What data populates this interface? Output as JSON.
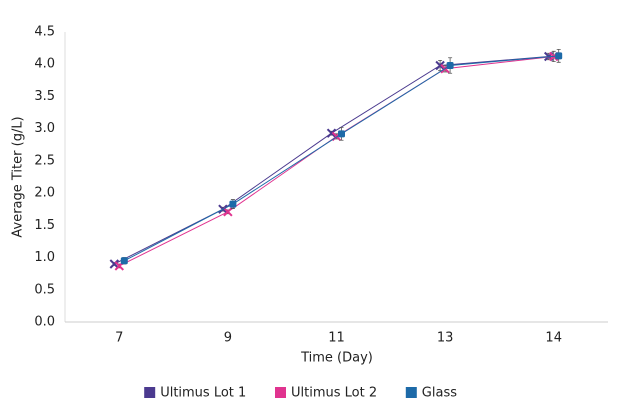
{
  "chart_data": {
    "type": "line",
    "x_label": "Time (Day)",
    "y_label": "Average Titer (g/L)",
    "categories": [
      "7",
      "9",
      "11",
      "13",
      "14"
    ],
    "series": [
      {
        "name": "Ultimus Lot 1",
        "color": "#4b3a8f",
        "marker": "x",
        "values": [
          0.9,
          1.75,
          2.93,
          3.98,
          4.12
        ],
        "errors": [
          0.02,
          0.03,
          0.03,
          0.08,
          0.05
        ]
      },
      {
        "name": "Ultimus Lot 2",
        "color": "#e0338f",
        "marker": "x",
        "values": [
          0.87,
          1.71,
          2.88,
          3.93,
          4.12
        ],
        "errors": [
          0.03,
          0.03,
          0.04,
          0.05,
          0.08
        ]
      },
      {
        "name": "Glass",
        "color": "#1d6aa8",
        "marker": "square",
        "values": [
          0.95,
          1.83,
          2.92,
          3.98,
          4.13
        ],
        "errors": [
          0.05,
          0.07,
          0.1,
          0.12,
          0.1
        ]
      }
    ],
    "ylim": [
      0,
      4.5
    ],
    "yticks": [
      {
        "value": 0,
        "label": "0.0"
      },
      0.5,
      {
        "value": 1,
        "label": "1.0"
      },
      1.5,
      {
        "value": 2,
        "label": "2.0"
      },
      2.5,
      {
        "value": 3,
        "label": "3.0"
      },
      3.5,
      {
        "value": 4,
        "label": "4.0"
      },
      4.5
    ],
    "grid": false,
    "legend": "bottom"
  }
}
